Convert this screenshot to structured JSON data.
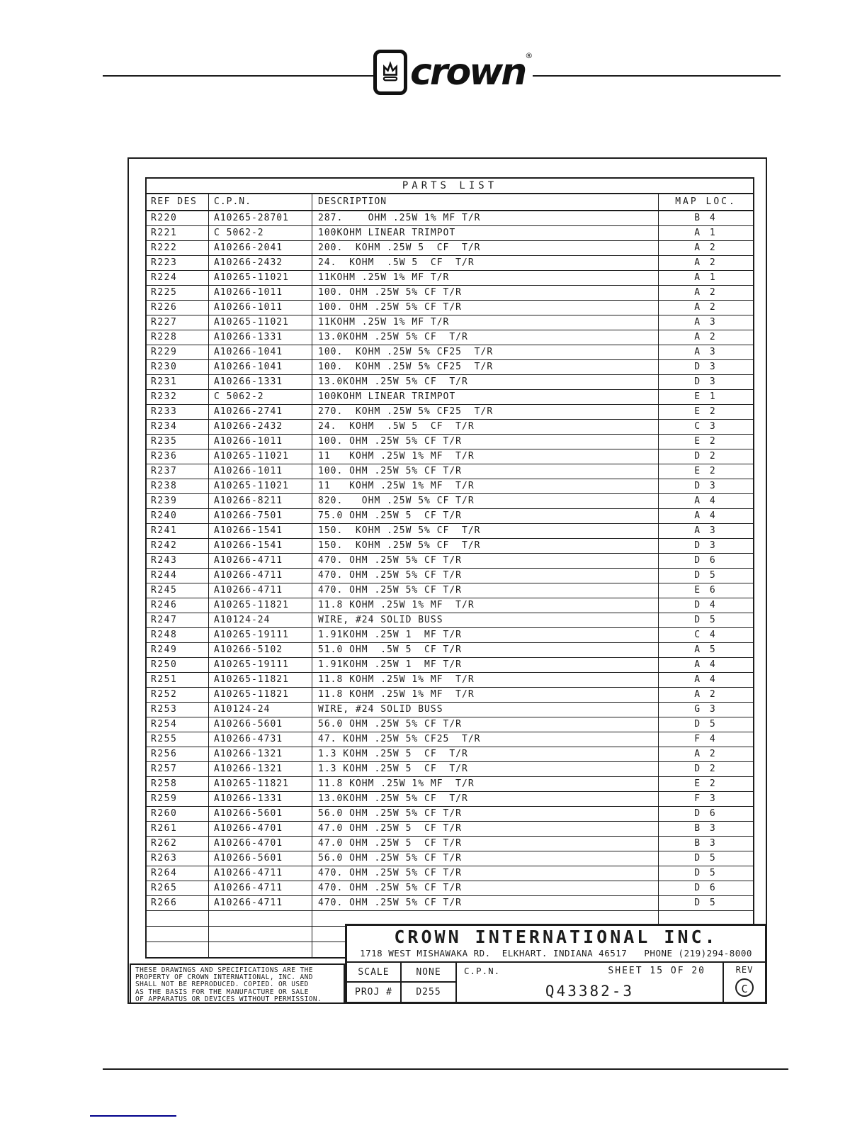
{
  "brand": {
    "name": "crown",
    "registered": "®"
  },
  "parts_table": {
    "title": "PARTS LIST",
    "columns": [
      "REF DES",
      "C.P.N.",
      "DESCRIPTION",
      "MAP LOC."
    ],
    "rows": [
      [
        "R220",
        "A10265-28701",
        "287.    OHM .25W 1% MF T/R",
        "B 4"
      ],
      [
        "R221",
        "C 5062-2",
        "100KOHM LINEAR TRIMPOT",
        "A 1"
      ],
      [
        "R222",
        "A10266-2041",
        "200.  KOHM .25W 5  CF  T/R",
        "A 2"
      ],
      [
        "R223",
        "A10266-2432",
        "24.  KOHM  .5W 5  CF  T/R",
        "A 2"
      ],
      [
        "R224",
        "A10265-11021",
        "11KOHM .25W 1% MF T/R",
        "A 1"
      ],
      [
        "R225",
        "A10266-1011",
        "100. OHM .25W 5% CF T/R",
        "A 2"
      ],
      [
        "R226",
        "A10266-1011",
        "100. OHM .25W 5% CF T/R",
        "A 2"
      ],
      [
        "R227",
        "A10265-11021",
        "11KOHM .25W 1% MF T/R",
        "A 3"
      ],
      [
        "R228",
        "A10266-1331",
        "13.0KOHM .25W 5% CF  T/R",
        "A 2"
      ],
      [
        "R229",
        "A10266-1041",
        "100.  KOHM .25W 5% CF25  T/R",
        "A 3"
      ],
      [
        "R230",
        "A10266-1041",
        "100.  KOHM .25W 5% CF25  T/R",
        "D 3"
      ],
      [
        "R231",
        "A10266-1331",
        "13.0KOHM .25W 5% CF  T/R",
        "D 3"
      ],
      [
        "R232",
        "C 5062-2",
        "100KOHM LINEAR TRIMPOT",
        "E 1"
      ],
      [
        "R233",
        "A10266-2741",
        "270.  KOHM .25W 5% CF25  T/R",
        "E 2"
      ],
      [
        "R234",
        "A10266-2432",
        "24.  KOHM  .5W 5  CF  T/R",
        "C 3"
      ],
      [
        "R235",
        "A10266-1011",
        "100. OHM .25W 5% CF T/R",
        "E 2"
      ],
      [
        "R236",
        "A10265-11021",
        "11   KOHM .25W 1% MF  T/R",
        "D 2"
      ],
      [
        "R237",
        "A10266-1011",
        "100. OHM .25W 5% CF T/R",
        "E 2"
      ],
      [
        "R238",
        "A10265-11021",
        "11   KOHM .25W 1% MF  T/R",
        "D 3"
      ],
      [
        "R239",
        "A10266-8211",
        "820.   OHM .25W 5% CF T/R",
        "A 4"
      ],
      [
        "R240",
        "A10266-7501",
        "75.0 OHM .25W 5  CF T/R",
        "A 4"
      ],
      [
        "R241",
        "A10266-1541",
        "150.  KOHM .25W 5% CF  T/R",
        "A 3"
      ],
      [
        "R242",
        "A10266-1541",
        "150.  KOHM .25W 5% CF  T/R",
        "D 3"
      ],
      [
        "R243",
        "A10266-4711",
        "470. OHM .25W 5% CF T/R",
        "D 6"
      ],
      [
        "R244",
        "A10266-4711",
        "470. OHM .25W 5% CF T/R",
        "D 5"
      ],
      [
        "R245",
        "A10266-4711",
        "470. OHM .25W 5% CF T/R",
        "E 6"
      ],
      [
        "R246",
        "A10265-11821",
        "11.8 KOHM .25W 1% MF  T/R",
        "D 4"
      ],
      [
        "R247",
        "A10124-24",
        "WIRE, #24 SOLID BUSS",
        "D 5"
      ],
      [
        "R248",
        "A10265-19111",
        "1.91KOHM .25W 1  MF T/R",
        "C 4"
      ],
      [
        "R249",
        "A10266-5102",
        "51.0 OHM  .5W 5  CF T/R",
        "A 5"
      ],
      [
        "R250",
        "A10265-19111",
        "1.91KOHM .25W 1  MF T/R",
        "A 4"
      ],
      [
        "R251",
        "A10265-11821",
        "11.8 KOHM .25W 1% MF  T/R",
        "A 4"
      ],
      [
        "R252",
        "A10265-11821",
        "11.8 KOHM .25W 1% MF  T/R",
        "A 2"
      ],
      [
        "R253",
        "A10124-24",
        "WIRE, #24 SOLID BUSS",
        "G 3"
      ],
      [
        "R254",
        "A10266-5601",
        "56.0 OHM .25W 5% CF T/R",
        "D 5"
      ],
      [
        "R255",
        "A10266-4731",
        "47. KOHM .25W 5% CF25  T/R",
        "F 4"
      ],
      [
        "R256",
        "A10266-1321",
        "1.3 KOHM .25W 5  CF  T/R",
        "A 2"
      ],
      [
        "R257",
        "A10266-1321",
        "1.3 KOHM .25W 5  CF  T/R",
        "D 2"
      ],
      [
        "R258",
        "A10265-11821",
        "11.8 KOHM .25W 1% MF  T/R",
        "E 2"
      ],
      [
        "R259",
        "A10266-1331",
        "13.0KOHM .25W 5% CF  T/R",
        "F 3"
      ],
      [
        "R260",
        "A10266-5601",
        "56.0 OHM .25W 5% CF T/R",
        "D 6"
      ],
      [
        "R261",
        "A10266-4701",
        "47.0 OHM .25W 5  CF T/R",
        "B 3"
      ],
      [
        "R262",
        "A10266-4701",
        "47.0 OHM .25W 5  CF T/R",
        "B 3"
      ],
      [
        "R263",
        "A10266-5601",
        "56.0 OHM .25W 5% CF T/R",
        "D 5"
      ],
      [
        "R264",
        "A10266-4711",
        "470. OHM .25W 5% CF T/R",
        "D 5"
      ],
      [
        "R265",
        "A10266-4711",
        "470. OHM .25W 5% CF T/R",
        "D 6"
      ],
      [
        "R266",
        "A10266-4711",
        "470. OHM .25W 5% CF T/R",
        "D 5"
      ]
    ],
    "empty_row_count": 3
  },
  "title_block": {
    "company": "CROWN INTERNATIONAL INC.",
    "address": "1718 WEST MISHAWAKA RD.  ELKHART. INDIANA 46517   PHONE (219)294-8000",
    "scale_label": "SCALE",
    "scale_value": "NONE",
    "proj_label": "PROJ #",
    "proj_value": "D255",
    "cpn_label": "C.P.N.",
    "sheet_label": "SHEET 15 OF 20",
    "cpn_value": "Q43382-3",
    "rev_label": "REV",
    "rev_value": "C"
  },
  "disclaimer_lines": [
    "THESE DRAWINGS AND SPECIFICATIONS ARE THE",
    "PROPERTY OF CROWN INTERNATIONAL, INC. AND",
    "SHALL NOT BE REPRODUCED. COPIED. OR USED",
    "AS THE BASIS FOR THE MANUFACTURE OR SALE",
    "OF APPARATUS OR DEVICES WITHOUT PERMISSION."
  ],
  "colors": {
    "ink": "#1c1c1c",
    "link": "#00008b"
  }
}
